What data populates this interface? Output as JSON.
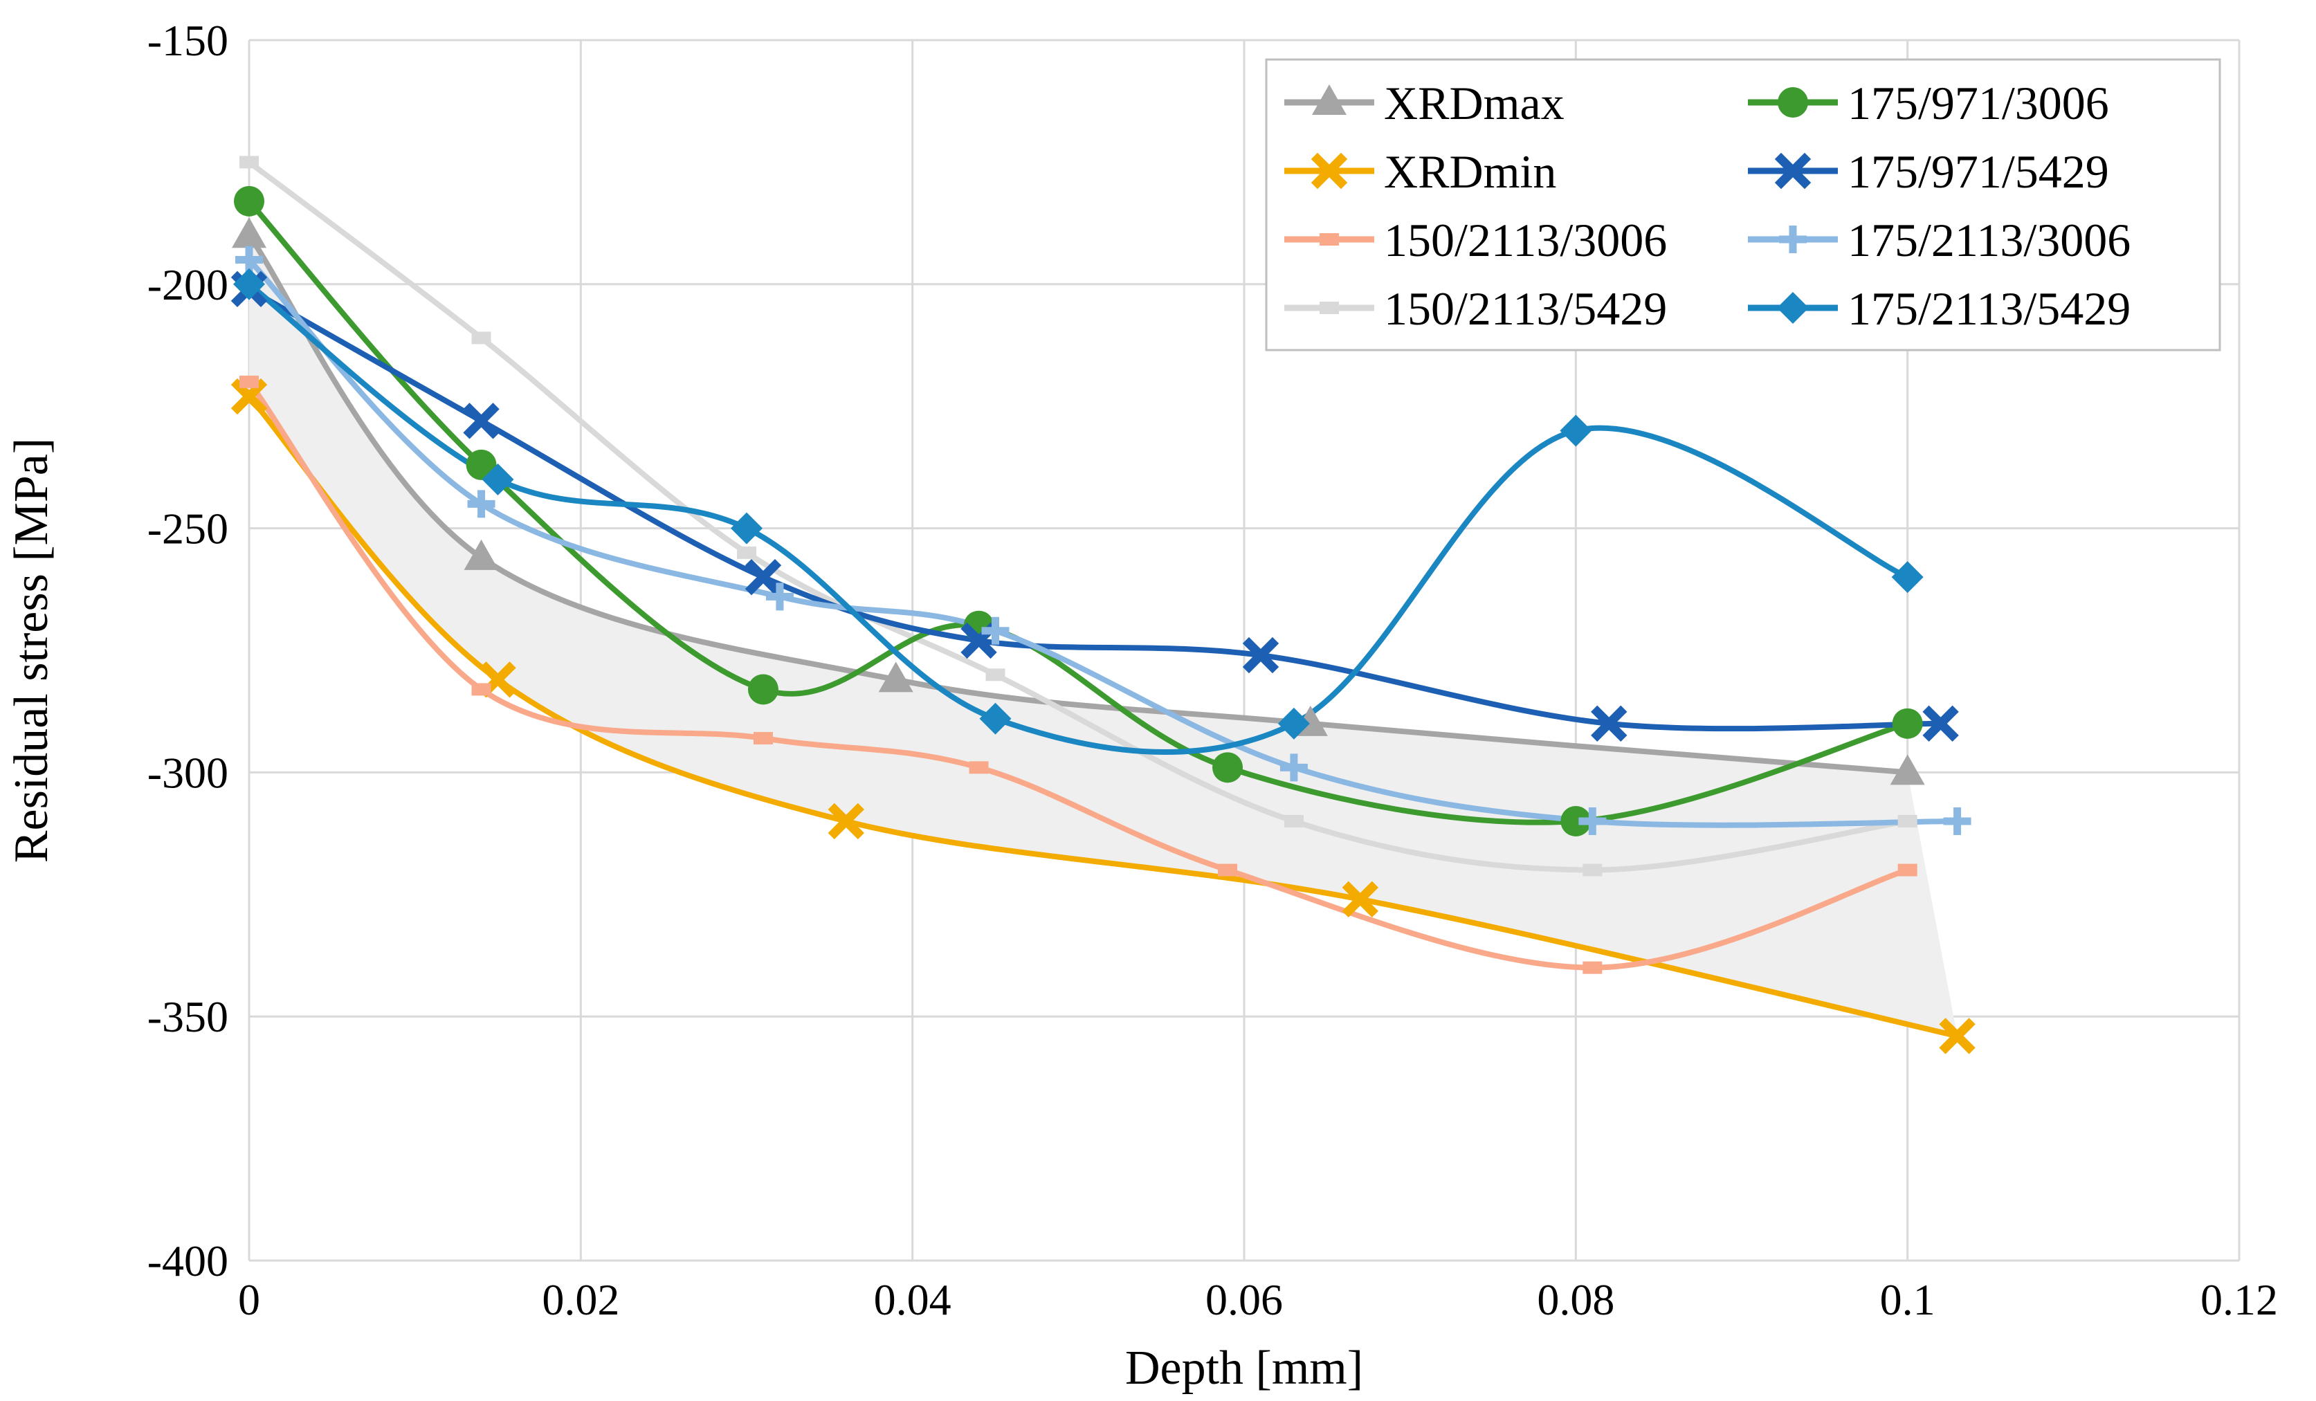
{
  "chart_data": {
    "type": "line",
    "title": "",
    "xlabel": "Depth [mm]",
    "ylabel": "Residual stress [MPa]",
    "xlim": [
      0,
      0.12
    ],
    "ylim": [
      -400,
      -150
    ],
    "xticks": [
      0,
      0.02,
      0.04,
      0.06,
      0.08,
      0.1,
      0.12
    ],
    "xtick_labels": [
      "0",
      "0.02",
      "0.04",
      "0.06",
      "0.08",
      "0.1",
      "0.12"
    ],
    "yticks": [
      -150,
      -200,
      -250,
      -300,
      -350,
      -400
    ],
    "ytick_labels": [
      "-150",
      "-200",
      "-250",
      "-300",
      "-350",
      "-400"
    ],
    "grid": true,
    "legend_position": "top-right",
    "band": {
      "between": [
        "XRDmax",
        "XRDmin"
      ],
      "color": "#efefef"
    },
    "series": [
      {
        "name": "XRDmax",
        "color": "#a5a5a5",
        "marker": "triangle",
        "x": [
          0,
          0.014,
          0.039,
          0.064,
          0.1
        ],
        "y": [
          -190,
          -256,
          -281,
          -290,
          -300
        ]
      },
      {
        "name": "XRDmin",
        "color": "#f4ab00",
        "marker": "x",
        "x": [
          0,
          0.015,
          0.036,
          0.067,
          0.103
        ],
        "y": [
          -223,
          -281,
          -310,
          -326,
          -354
        ]
      },
      {
        "name": "150/2113/3006",
        "color": "#f9a98a",
        "marker": "dash",
        "x": [
          0,
          0.014,
          0.031,
          0.044,
          0.059,
          0.081,
          0.1
        ],
        "y": [
          -220,
          -283,
          -293,
          -299,
          -320,
          -340,
          -320
        ]
      },
      {
        "name": "150/2113/5429",
        "color": "#d9d9d9",
        "marker": "dash",
        "x": [
          0,
          0.014,
          0.03,
          0.045,
          0.063,
          0.081,
          0.1
        ],
        "y": [
          -175,
          -211,
          -255,
          -280,
          -310,
          -320,
          -310
        ]
      },
      {
        "name": "175/971/3006",
        "color": "#3d9a2f",
        "marker": "circle",
        "x": [
          0,
          0.014,
          0.031,
          0.044,
          0.059,
          0.08,
          0.1
        ],
        "y": [
          -183,
          -237,
          -283,
          -270,
          -299,
          -310,
          -290
        ]
      },
      {
        "name": "175/971/5429",
        "color": "#1d5fb3",
        "marker": "x",
        "x": [
          0,
          0.014,
          0.031,
          0.044,
          0.061,
          0.082,
          0.102
        ],
        "y": [
          -201,
          -228,
          -260,
          -273,
          -276,
          -290,
          -290
        ]
      },
      {
        "name": "175/2113/3006",
        "color": "#8ab8e3",
        "marker": "plus",
        "x": [
          0,
          0.014,
          0.032,
          0.045,
          0.063,
          0.081,
          0.103
        ],
        "y": [
          -195,
          -245,
          -264,
          -271,
          -299,
          -310,
          -310
        ]
      },
      {
        "name": "175/2113/5429",
        "color": "#1a86c2",
        "marker": "diamond",
        "x": [
          0,
          0.015,
          0.03,
          0.045,
          0.063,
          0.08,
          0.1
        ],
        "y": [
          -200,
          -240,
          -250,
          -289,
          -290,
          -230,
          -260
        ]
      }
    ]
  }
}
